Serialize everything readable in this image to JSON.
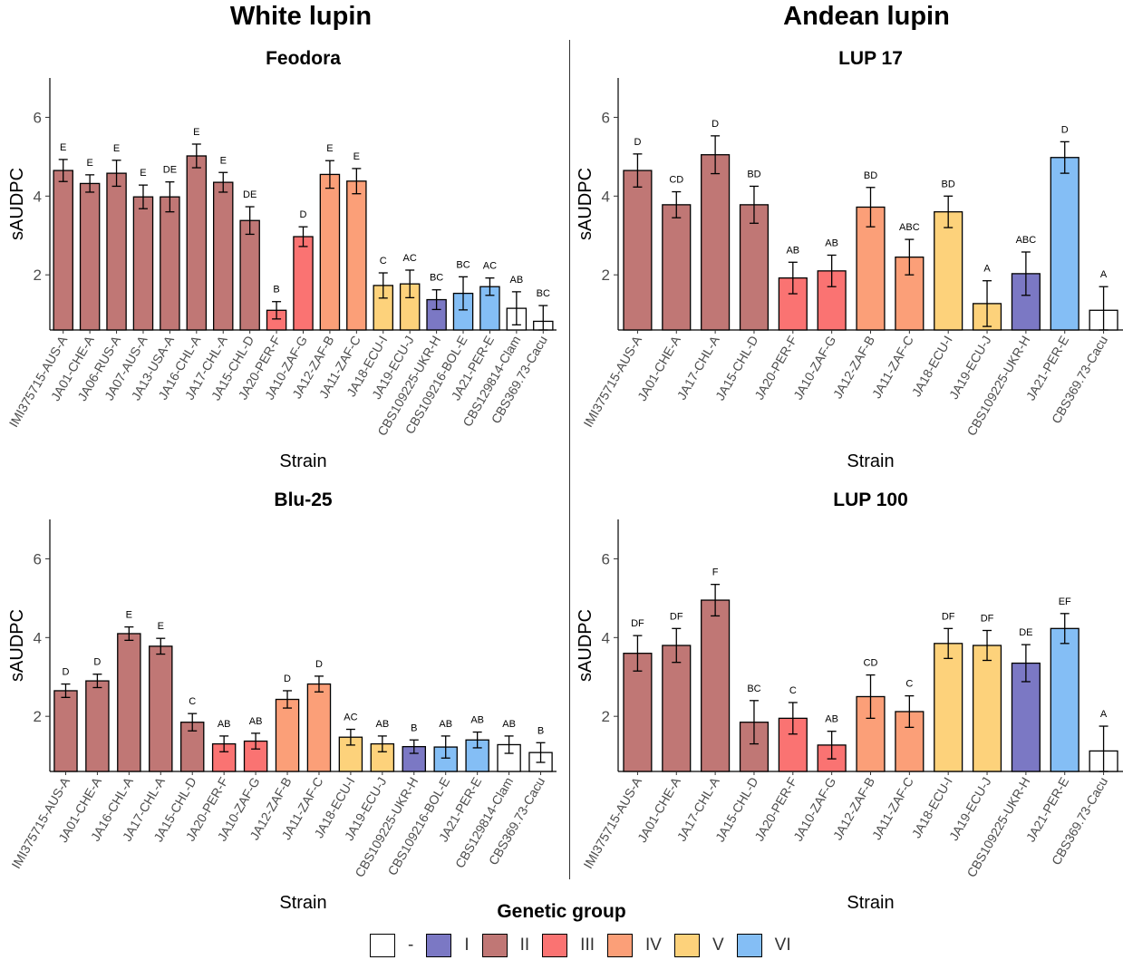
{
  "column_titles": [
    "White lupin",
    "Andean lupin"
  ],
  "legend": {
    "title": "Genetic group",
    "items": [
      {
        "label": "-",
        "color": "#FFFFFF"
      },
      {
        "label": "I",
        "color": "#7B78C4"
      },
      {
        "label": "II",
        "color": "#C07775"
      },
      {
        "label": "III",
        "color": "#FA7372"
      },
      {
        "label": "IV",
        "color": "#FB9F78"
      },
      {
        "label": "V",
        "color": "#FDD27B"
      },
      {
        "label": "VI",
        "color": "#84BEF5"
      }
    ]
  },
  "group_colors": {
    "-": "#FFFFFF",
    "I": "#7B78C4",
    "II": "#C07775",
    "III": "#FA7372",
    "IV": "#FB9F78",
    "V": "#FDD27B",
    "VI": "#84BEF5"
  },
  "chart_data": [
    {
      "type": "bar",
      "title": "Feodora",
      "xlabel": "Strain",
      "ylabel": "sAUDPC",
      "yticks": [
        2,
        4,
        6
      ],
      "ylim": [
        0.6,
        7.0
      ],
      "categories": [
        "IMI375715-AUS-A",
        "JA01-CHE-A",
        "JA06-RUS-A",
        "JA07-AUS-A",
        "JA13-USA-A",
        "JA16-CHL-A",
        "JA17-CHL-A",
        "JA15-CHL-D",
        "JA20-PER-F",
        "JA10-ZAF-G",
        "JA12-ZAF-B",
        "JA11-ZAF-C",
        "JA18-ECU-I",
        "JA19-ECU-J",
        "CBS109225-UKR-H",
        "CBS109216-BOL-E",
        "JA21-PER-E",
        "CBS129814-Clam",
        "CBS369.73-Cacu"
      ],
      "groups": [
        "II",
        "II",
        "II",
        "II",
        "II",
        "II",
        "II",
        "II",
        "III",
        "III",
        "IV",
        "IV",
        "V",
        "V",
        "I",
        "VI",
        "VI",
        "-",
        "-"
      ],
      "values": [
        4.65,
        4.32,
        4.58,
        3.98,
        3.98,
        5.02,
        4.35,
        3.38,
        1.1,
        2.97,
        4.55,
        4.38,
        1.73,
        1.77,
        1.37,
        1.53,
        1.7,
        1.15,
        0.82
      ],
      "errors": [
        0.28,
        0.22,
        0.33,
        0.3,
        0.38,
        0.3,
        0.25,
        0.35,
        0.22,
        0.25,
        0.35,
        0.32,
        0.32,
        0.35,
        0.25,
        0.42,
        0.22,
        0.42,
        0.4
      ],
      "letters": [
        "E",
        "E",
        "E",
        "E",
        "DE",
        "E",
        "E",
        "DE",
        "B",
        "D",
        "E",
        "E",
        "C",
        "AC",
        "BC",
        "BC",
        "AC",
        "AB",
        "BC"
      ]
    },
    {
      "type": "bar",
      "title": "LUP 17",
      "xlabel": "Strain",
      "ylabel": "sAUDPC",
      "yticks": [
        2,
        4,
        6
      ],
      "ylim": [
        0.6,
        7.0
      ],
      "categories": [
        "IMI375715-AUS-A",
        "JA01-CHE-A",
        "JA17-CHL-A",
        "JA15-CHL-D",
        "JA20-PER-F",
        "JA10-ZAF-G",
        "JA12-ZAF-B",
        "JA11-ZAF-C",
        "JA18-ECU-I",
        "JA19-ECU-J",
        "CBS109225-UKR-H",
        "JA21-PER-E",
        "CBS369.73-Cacu"
      ],
      "groups": [
        "II",
        "II",
        "II",
        "II",
        "III",
        "III",
        "IV",
        "IV",
        "V",
        "V",
        "I",
        "VI",
        "-"
      ],
      "values": [
        4.65,
        3.78,
        5.05,
        3.78,
        1.92,
        2.1,
        3.72,
        2.45,
        3.6,
        1.27,
        2.03,
        4.98,
        1.1
      ],
      "errors": [
        0.42,
        0.33,
        0.48,
        0.47,
        0.4,
        0.4,
        0.5,
        0.45,
        0.4,
        0.58,
        0.55,
        0.4,
        0.6
      ],
      "letters": [
        "D",
        "CD",
        "D",
        "BD",
        "AB",
        "AB",
        "BD",
        "ABC",
        "BD",
        "A",
        "ABC",
        "D",
        "A"
      ]
    },
    {
      "type": "bar",
      "title": "Blu-25",
      "xlabel": "Strain",
      "ylabel": "sAUDPC",
      "yticks": [
        2,
        4,
        6
      ],
      "ylim": [
        0.6,
        7.0
      ],
      "categories": [
        "IMI375715-AUS-A",
        "JA01-CHE-A",
        "JA16-CHL-A",
        "JA17-CHL-A",
        "JA15-CHL-D",
        "JA20-PER-F",
        "JA10-ZAF-G",
        "JA12-ZAF-B",
        "JA11-ZAF-C",
        "JA18-ECU-I",
        "JA19-ECU-J",
        "CBS109225-UKR-H",
        "CBS109216-BOL-E",
        "JA21-PER-E",
        "CBS129814-Clam",
        "CBS369.73-Cacu"
      ],
      "groups": [
        "II",
        "II",
        "II",
        "II",
        "II",
        "III",
        "III",
        "IV",
        "IV",
        "V",
        "V",
        "I",
        "VI",
        "VI",
        "-",
        "-"
      ],
      "values": [
        2.65,
        2.9,
        4.1,
        3.78,
        1.85,
        1.3,
        1.37,
        2.43,
        2.82,
        1.47,
        1.3,
        1.23,
        1.22,
        1.4,
        1.28,
        1.08
      ],
      "errors": [
        0.17,
        0.17,
        0.17,
        0.2,
        0.22,
        0.2,
        0.2,
        0.22,
        0.2,
        0.2,
        0.2,
        0.17,
        0.28,
        0.2,
        0.22,
        0.25
      ],
      "letters": [
        "D",
        "D",
        "E",
        "E",
        "C",
        "AB",
        "AB",
        "D",
        "D",
        "AC",
        "AB",
        "B",
        "AB",
        "AB",
        "AB",
        "B"
      ]
    },
    {
      "type": "bar",
      "title": "LUP 100",
      "xlabel": "Strain",
      "ylabel": "sAUDPC",
      "yticks": [
        2,
        4,
        6
      ],
      "ylim": [
        0.6,
        7.0
      ],
      "categories": [
        "IMI375715-AUS-A",
        "JA01-CHE-A",
        "JA17-CHL-A",
        "JA15-CHL-D",
        "JA20-PER-F",
        "JA10-ZAF-G",
        "JA12-ZAF-B",
        "JA11-ZAF-C",
        "JA18-ECU-I",
        "JA19-ECU-J",
        "CBS109225-UKR-H",
        "JA21-PER-E",
        "CBS369.73-Cacu"
      ],
      "groups": [
        "II",
        "II",
        "II",
        "II",
        "III",
        "III",
        "IV",
        "IV",
        "V",
        "V",
        "I",
        "VI",
        "-"
      ],
      "values": [
        3.6,
        3.8,
        4.95,
        1.85,
        1.95,
        1.27,
        2.5,
        2.12,
        3.85,
        3.8,
        3.35,
        4.23,
        1.12
      ],
      "errors": [
        0.45,
        0.43,
        0.4,
        0.55,
        0.4,
        0.35,
        0.55,
        0.4,
        0.38,
        0.38,
        0.47,
        0.38,
        0.63
      ],
      "letters": [
        "DF",
        "DF",
        "F",
        "BC",
        "C",
        "AB",
        "CD",
        "C",
        "DF",
        "DF",
        "DE",
        "EF",
        "A"
      ]
    }
  ]
}
